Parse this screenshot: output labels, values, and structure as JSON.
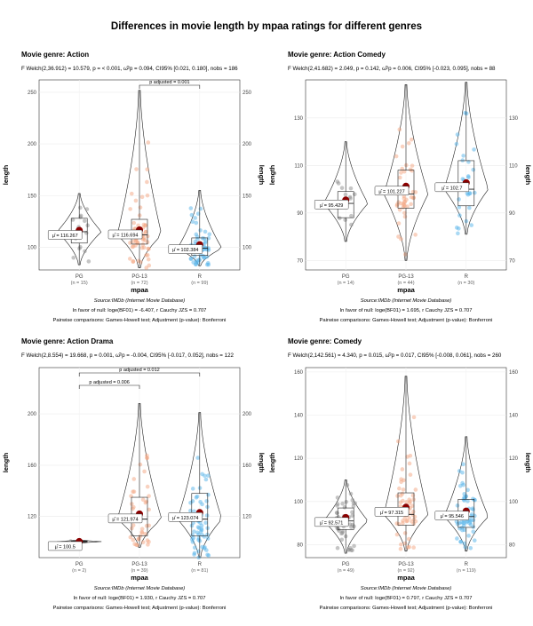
{
  "main_title": "Differences in movie length by mpaa ratings for different genres",
  "colors": {
    "PG": "#8c8c8c",
    "PG-13": "#f4a582",
    "R": "#56b4e9",
    "mean": "#8b0000"
  },
  "chart_data": [
    {
      "type": "violin-box-scatter",
      "title": "Movie genre: Action",
      "stats": "F Welch(2,36.912) = 10.579, p = < 0.001, ω̂²p = 0.094, CI95% [0.021, 0.180], nobs = 186",
      "xlabel": "mpaa",
      "ylabel": "length",
      "ylim": [
        78,
        262
      ],
      "yticks": [
        100,
        150,
        200,
        250
      ],
      "categories": [
        "PG",
        "PG-13",
        "R"
      ],
      "n_labels": [
        "(n = 15)",
        "(n = 72)",
        "(n = 99)"
      ],
      "means": [
        116.267,
        116.694,
        102.384
      ],
      "mean_labels": [
        "μ̂ = 116.267",
        "μ̂ = 116.694",
        "μ̂ = 102.384"
      ],
      "quartiles": [
        [
          104,
          115,
          128
        ],
        [
          103,
          112,
          127
        ],
        [
          92,
          99,
          109
        ]
      ],
      "ranges": [
        [
          83,
          152
        ],
        [
          80,
          252
        ],
        [
          82,
          155
        ]
      ],
      "comparisons": [
        {
          "pair": [
            "PG-13",
            "R"
          ],
          "label": "p adjusted = 0.001"
        }
      ],
      "caption_source": "Source:IMDb (Internet Movie Database)",
      "caption_bf": "In favor of null: loge(BF01) = -6.407, r Cauchy JZS = 0.707",
      "caption_pw": "Pairwise comparisons: Games-Howell test; Adjustment (p-value): Bonferroni"
    },
    {
      "type": "violin-box-scatter",
      "title": "Movie genre: Action Comedy",
      "stats": "F Welch(2,41.682) = 2.049, p = 0.142, ω̂²p = 0.006, CI95% [-0.023, 0.095], nobs = 88",
      "xlabel": "mpaa",
      "ylabel": "length",
      "ylim": [
        66,
        146
      ],
      "yticks": [
        70,
        90,
        110,
        130
      ],
      "categories": [
        "PG",
        "PG-13",
        "R"
      ],
      "n_labels": [
        "(n = 14)",
        "(n = 44)",
        "(n = 30)"
      ],
      "means": [
        95.429,
        101.227,
        102.7
      ],
      "mean_labels": [
        "μ̂ = 95.429",
        "μ̂ = 101.227",
        "μ̂ = 102.7"
      ],
      "quartiles": [
        [
          88,
          94,
          99
        ],
        [
          92,
          98,
          108
        ],
        [
          93,
          100,
          112
        ]
      ],
      "ranges": [
        [
          78,
          120
        ],
        [
          70,
          144
        ],
        [
          81,
          145
        ]
      ],
      "comparisons": [],
      "caption_source": "Source:IMDb (Internet Movie Database)",
      "caption_bf": "In favor of null: loge(BF01) = 1.695, r Cauchy JZS = 0.707",
      "caption_pw": "Pairwise comparisons: Games-Howell test; Adjustment (p-value): Bonferroni"
    },
    {
      "type": "violin-box-scatter",
      "title": "Movie genre: Action Drama",
      "stats": "F Welch(2,8.554) = 19.668, p = 0.001, ω̂²p = -0.004, CI95% [-0.017, 0.052], nobs = 122",
      "xlabel": "mpaa",
      "ylabel": "length",
      "ylim": [
        88,
        236
      ],
      "yticks": [
        120,
        160,
        200
      ],
      "categories": [
        "PG",
        "PG-13",
        "R"
      ],
      "n_labels": [
        "(n = 2)",
        "(n = 39)",
        "(n = 81)"
      ],
      "means": [
        100.5,
        121.974,
        123.074
      ],
      "mean_labels": [
        "μ̂ = 100.5",
        "μ̂ = 121.974",
        "μ̂ = 123.074"
      ],
      "quartiles": [
        [
          100,
          100.5,
          101
        ],
        [
          105,
          118,
          135
        ],
        [
          105,
          118,
          138
        ]
      ],
      "ranges": [
        [
          99,
          102
        ],
        [
          96,
          208
        ],
        [
          88,
          201
        ]
      ],
      "comparisons": [
        {
          "pair": [
            "PG",
            "PG-13"
          ],
          "label": "p adjusted = 0.006"
        },
        {
          "pair": [
            "PG",
            "R"
          ],
          "label": "p adjusted = 0.012"
        }
      ],
      "caption_source": "Source:IMDb (Internet Movie Database)",
      "caption_bf": "In favor of null: loge(BF01) = 1.930, r Cauchy JZS = 0.707",
      "caption_pw": "Pairwise comparisons: Games-Howell test; Adjustment (p-value): Bonferroni"
    },
    {
      "type": "violin-box-scatter",
      "title": "Movie genre: Comedy",
      "stats": "F Welch(2,142.561) = 4.340, p = 0.015, ω̂²p = 0.017, CI95% [-0.008, 0.061], nobs = 260",
      "xlabel": "mpaa",
      "ylabel": "length",
      "ylim": [
        74,
        162
      ],
      "yticks": [
        80,
        100,
        120,
        140,
        160
      ],
      "categories": [
        "PG",
        "PG-13",
        "R"
      ],
      "n_labels": [
        "(n = 49)",
        "(n = 92)",
        "(n = 119)"
      ],
      "means": [
        92.571,
        97.315,
        95.546
      ],
      "mean_labels": [
        "μ̂ = 92.571",
        "μ̂ = 97.315",
        "μ̂ = 95.546"
      ],
      "quartiles": [
        [
          87,
          91,
          97
        ],
        [
          89,
          94,
          104
        ],
        [
          88,
          93,
          101
        ]
      ],
      "ranges": [
        [
          76,
          110
        ],
        [
          77,
          158
        ],
        [
          77,
          130
        ]
      ],
      "comparisons": [],
      "caption_source": "Source:IMDb (Internet Movie Database)",
      "caption_bf": "In favor of null: loge(BF01) = 0.797, r Cauchy JZS = 0.707",
      "caption_pw": "Pairwise comparisons: Games-Howell test; Adjustment (p-value): Bonferroni"
    }
  ]
}
